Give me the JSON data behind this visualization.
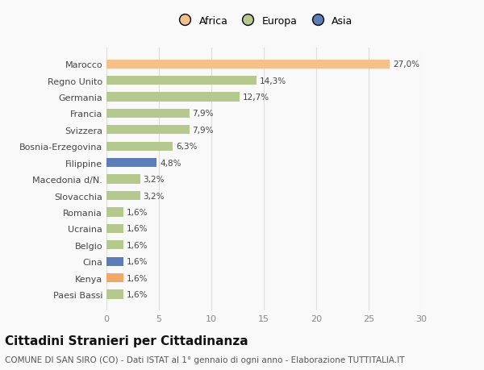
{
  "categories": [
    "Paesi Bassi",
    "Kenya",
    "Cina",
    "Belgio",
    "Ucraina",
    "Romania",
    "Slovacchia",
    "Macedonia d/N.",
    "Filippine",
    "Bosnia-Erzegovina",
    "Svizzera",
    "Francia",
    "Germania",
    "Regno Unito",
    "Marocco"
  ],
  "values": [
    1.6,
    1.6,
    1.6,
    1.6,
    1.6,
    1.6,
    3.2,
    3.2,
    4.8,
    6.3,
    7.9,
    7.9,
    12.7,
    14.3,
    27.0
  ],
  "colors": [
    "#b5c98e",
    "#f0a868",
    "#5f7db5",
    "#b5c98e",
    "#b5c98e",
    "#b5c98e",
    "#b5c98e",
    "#b5c98e",
    "#5f7db5",
    "#b5c98e",
    "#b5c98e",
    "#b5c98e",
    "#b5c98e",
    "#b5c98e",
    "#f5c08a"
  ],
  "labels": [
    "1,6%",
    "1,6%",
    "1,6%",
    "1,6%",
    "1,6%",
    "1,6%",
    "3,2%",
    "3,2%",
    "4,8%",
    "6,3%",
    "7,9%",
    "7,9%",
    "12,7%",
    "14,3%",
    "27,0%"
  ],
  "legend": [
    {
      "label": "Africa",
      "color": "#f5c08a"
    },
    {
      "label": "Europa",
      "color": "#b5c98e"
    },
    {
      "label": "Asia",
      "color": "#5f7db5"
    }
  ],
  "title": "Cittadini Stranieri per Cittadinanza",
  "subtitle": "COMUNE DI SAN SIRO (CO) - Dati ISTAT al 1° gennaio di ogni anno - Elaborazione TUTTITALIA.IT",
  "xlim": [
    0,
    30
  ],
  "xticks": [
    0,
    5,
    10,
    15,
    20,
    25,
    30
  ],
  "background_color": "#f9f9f9",
  "bar_height": 0.55,
  "title_fontsize": 11,
  "subtitle_fontsize": 7.5,
  "label_fontsize": 7.5,
  "ytick_fontsize": 8,
  "xtick_fontsize": 8,
  "legend_fontsize": 9
}
